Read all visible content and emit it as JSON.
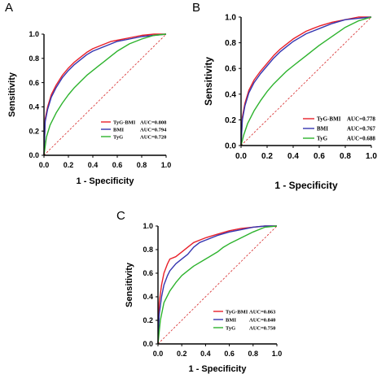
{
  "chart_data": [
    {
      "type": "line",
      "panel": "A",
      "xlabel": "1 - Specificity",
      "ylabel": "Sensitivity",
      "xlim": [
        0,
        1
      ],
      "ylim": [
        0,
        1
      ],
      "x_ticks": [
        "0.0",
        "0.2",
        "0.4",
        "0.6",
        "0.8",
        "1.0"
      ],
      "y_ticks": [
        "0.0",
        "0.2",
        "0.4",
        "0.6",
        "0.8",
        "1.0"
      ],
      "legend_position": "bottom-right",
      "reference_line": {
        "color": "#d62728",
        "style": "dashed"
      },
      "series": [
        {
          "name": "TyG-BMI",
          "auc_label": "AUC=0.808",
          "color": "#e8202a",
          "x": [
            0,
            0.01,
            0.03,
            0.06,
            0.1,
            0.15,
            0.2,
            0.25,
            0.3,
            0.35,
            0.4,
            0.45,
            0.5,
            0.55,
            0.6,
            0.7,
            0.8,
            0.9,
            1.0
          ],
          "y": [
            0,
            0.3,
            0.4,
            0.5,
            0.58,
            0.66,
            0.72,
            0.77,
            0.81,
            0.85,
            0.88,
            0.9,
            0.92,
            0.94,
            0.95,
            0.97,
            0.99,
            1.0,
            1.0
          ]
        },
        {
          "name": "BMI",
          "auc_label": "AUC=0.794",
          "color": "#3535b0",
          "x": [
            0,
            0.01,
            0.03,
            0.06,
            0.1,
            0.15,
            0.2,
            0.25,
            0.3,
            0.35,
            0.4,
            0.45,
            0.5,
            0.55,
            0.6,
            0.7,
            0.8,
            0.9,
            1.0
          ],
          "y": [
            0,
            0.28,
            0.38,
            0.48,
            0.56,
            0.64,
            0.7,
            0.75,
            0.79,
            0.83,
            0.86,
            0.88,
            0.9,
            0.92,
            0.94,
            0.96,
            0.98,
            0.99,
            1.0
          ]
        },
        {
          "name": "TyG",
          "auc_label": "AUC=0.720",
          "color": "#2db32d",
          "x": [
            0,
            0.02,
            0.05,
            0.1,
            0.15,
            0.2,
            0.25,
            0.3,
            0.35,
            0.4,
            0.45,
            0.5,
            0.55,
            0.6,
            0.7,
            0.8,
            0.9,
            1.0
          ],
          "y": [
            0,
            0.15,
            0.25,
            0.35,
            0.43,
            0.5,
            0.56,
            0.61,
            0.66,
            0.7,
            0.74,
            0.78,
            0.82,
            0.86,
            0.92,
            0.96,
            0.99,
            1.0
          ]
        }
      ]
    },
    {
      "type": "line",
      "panel": "B",
      "xlabel": "1 - Specificity",
      "ylabel": "Sensitivity",
      "xlim": [
        0,
        1
      ],
      "ylim": [
        0,
        1
      ],
      "x_ticks": [
        "0.0",
        "0.2",
        "0.4",
        "0.6",
        "0.8",
        "1.0"
      ],
      "y_ticks": [
        "0.0",
        "0.2",
        "0.4",
        "0.6",
        "0.8",
        "1.0"
      ],
      "legend_position": "bottom-right",
      "reference_line": {
        "color": "#d62728",
        "style": "dashed"
      },
      "series": [
        {
          "name": "TyG-BMI",
          "auc_label": "AUC=0.778",
          "color": "#e8202a",
          "x": [
            0,
            0.01,
            0.03,
            0.06,
            0.1,
            0.15,
            0.2,
            0.25,
            0.3,
            0.35,
            0.4,
            0.45,
            0.5,
            0.55,
            0.6,
            0.7,
            0.8,
            0.9,
            1.0
          ],
          "y": [
            0,
            0.22,
            0.33,
            0.43,
            0.51,
            0.58,
            0.64,
            0.7,
            0.75,
            0.79,
            0.83,
            0.86,
            0.89,
            0.91,
            0.93,
            0.96,
            0.98,
            1.0,
            1.0
          ]
        },
        {
          "name": "BMI",
          "auc_label": "AUC=0.767",
          "color": "#3535b0",
          "x": [
            0,
            0.01,
            0.03,
            0.06,
            0.1,
            0.15,
            0.2,
            0.25,
            0.3,
            0.35,
            0.4,
            0.45,
            0.5,
            0.55,
            0.6,
            0.7,
            0.8,
            0.9,
            1.0
          ],
          "y": [
            0,
            0.2,
            0.31,
            0.41,
            0.49,
            0.56,
            0.62,
            0.68,
            0.73,
            0.77,
            0.81,
            0.84,
            0.87,
            0.89,
            0.91,
            0.95,
            0.98,
            0.99,
            1.0
          ]
        },
        {
          "name": "TyG",
          "auc_label": "AUC=0.688",
          "color": "#2db32d",
          "x": [
            0,
            0.02,
            0.05,
            0.1,
            0.15,
            0.2,
            0.25,
            0.3,
            0.35,
            0.4,
            0.45,
            0.5,
            0.55,
            0.6,
            0.7,
            0.8,
            0.9,
            1.0
          ],
          "y": [
            0,
            0.08,
            0.17,
            0.27,
            0.35,
            0.42,
            0.48,
            0.53,
            0.58,
            0.62,
            0.66,
            0.7,
            0.74,
            0.78,
            0.85,
            0.92,
            0.97,
            1.0
          ]
        }
      ]
    },
    {
      "type": "line",
      "panel": "C",
      "xlabel": "1 - Specificity",
      "ylabel": "Sensitivity",
      "xlim": [
        0,
        1
      ],
      "ylim": [
        0,
        1
      ],
      "x_ticks": [
        "0.0",
        "0.2",
        "0.4",
        "0.6",
        "0.8",
        "1.0"
      ],
      "y_ticks": [
        "0.0",
        "0.2",
        "0.4",
        "0.6",
        "0.8",
        "1.0"
      ],
      "legend_position": "bottom-right",
      "reference_line": {
        "color": "#d62728",
        "style": "dashed"
      },
      "series": [
        {
          "name": "TyG-BMI",
          "auc_label": "AUC=0.863",
          "color": "#e8202a",
          "x": [
            0,
            0.01,
            0.03,
            0.05,
            0.08,
            0.1,
            0.15,
            0.2,
            0.25,
            0.3,
            0.35,
            0.4,
            0.5,
            0.6,
            0.7,
            0.8,
            0.9,
            1.0
          ],
          "y": [
            0,
            0.35,
            0.5,
            0.6,
            0.68,
            0.72,
            0.74,
            0.78,
            0.82,
            0.86,
            0.88,
            0.9,
            0.93,
            0.96,
            0.98,
            0.99,
            1.0,
            1.0
          ]
        },
        {
          "name": "BMI",
          "auc_label": "AUC=0.840",
          "color": "#3535b0",
          "x": [
            0,
            0.01,
            0.03,
            0.05,
            0.08,
            0.1,
            0.15,
            0.2,
            0.25,
            0.3,
            0.35,
            0.4,
            0.5,
            0.6,
            0.7,
            0.8,
            0.9,
            1.0
          ],
          "y": [
            0,
            0.25,
            0.4,
            0.5,
            0.58,
            0.62,
            0.68,
            0.72,
            0.76,
            0.82,
            0.86,
            0.88,
            0.92,
            0.95,
            0.97,
            0.99,
            1.0,
            1.0
          ]
        },
        {
          "name": "TyG",
          "auc_label": "AUC=0.750",
          "color": "#2db32d",
          "x": [
            0,
            0.02,
            0.05,
            0.1,
            0.15,
            0.2,
            0.25,
            0.3,
            0.4,
            0.5,
            0.55,
            0.6,
            0.7,
            0.8,
            0.9,
            1.0
          ],
          "y": [
            0,
            0.2,
            0.35,
            0.45,
            0.52,
            0.58,
            0.62,
            0.66,
            0.72,
            0.78,
            0.82,
            0.85,
            0.9,
            0.95,
            0.99,
            1.0
          ]
        }
      ]
    }
  ]
}
